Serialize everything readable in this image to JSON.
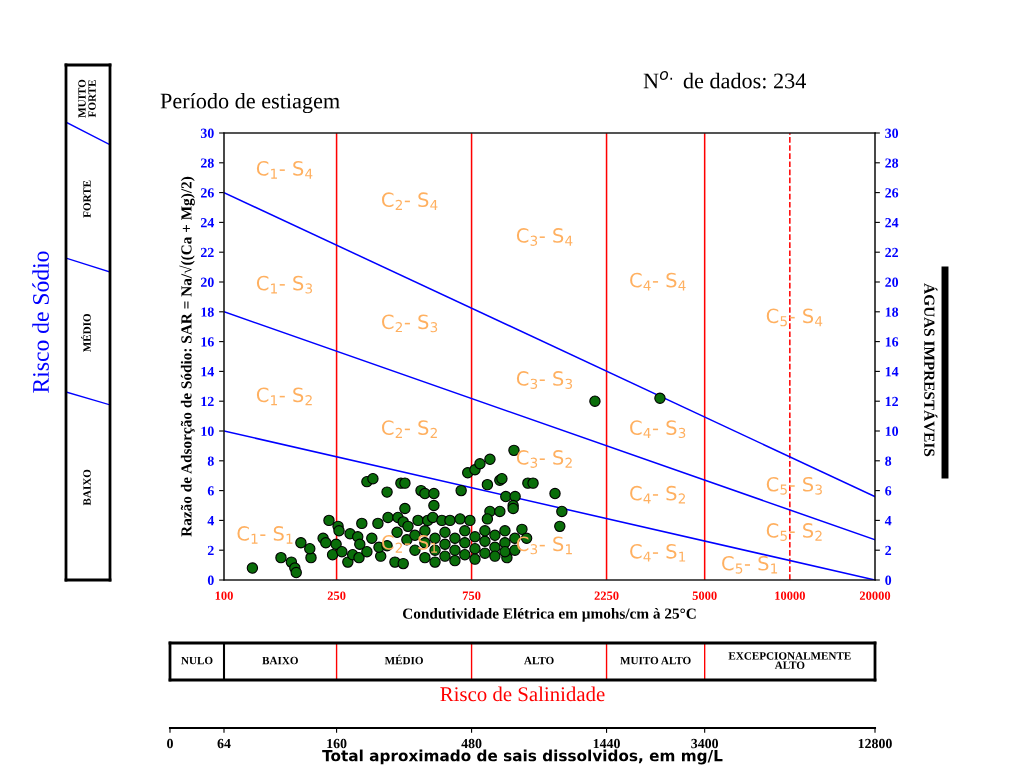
{
  "chart_data": {
    "type": "scatter",
    "title": "Período de estiagem",
    "xlabel": "Condutividade Elétrica em µmohs/cm à 25°C",
    "ylabel": "Razão de Adsorção de Sódio: SAR = Na/√((Ca + Mg)/2)",
    "log": "x",
    "grid": false,
    "marker": "circle",
    "xlim": [
      100,
      20000
    ],
    "xticks": [
      100,
      250,
      750,
      2250,
      5000,
      10000,
      20000
    ],
    "ylim": [
      0,
      30
    ],
    "yticks": [
      0,
      2,
      4,
      6,
      8,
      10,
      12,
      14,
      16,
      18,
      20,
      22,
      24,
      26,
      28,
      30
    ],
    "y2lim": [
      0,
      30
    ],
    "y2ticks": [
      0,
      2,
      4,
      6,
      8,
      10,
      12,
      14,
      16,
      18,
      20,
      22,
      24,
      26,
      28,
      30
    ],
    "series": [
      {
        "color": "#0a6e0a",
        "x": [
          126,
          159,
          173,
          178,
          180,
          203,
          201,
          187,
          224,
          229,
          235,
          253,
          255,
          249,
          242,
          261,
          279,
          274,
          297,
          302,
          285,
          307,
          300,
          320,
          333,
          350,
          320,
          336,
          377,
          358,
          353,
          377,
          380,
          412,
          409,
          402,
          422,
          436,
          436,
          430,
          430,
          447,
          443,
          497,
          513,
          552,
          552,
          485,
          525,
          547,
          589,
          629,
          683,
          740,
          689,
          727,
          771,
          803,
          871,
          1059,
          853,
          944,
          960,
          1186,
          1237,
          1479,
          991,
          1069,
          1052,
          1052,
          1564,
          1538,
          871,
          944,
          853,
          1130,
          1174,
          1000,
          473,
          473,
          513,
          513,
          513,
          557,
          557,
          557,
          604,
          604,
          604,
          655,
          655,
          655,
          710,
          710,
          710,
          771,
          771,
          771,
          836,
          836,
          836,
          907,
          907,
          907,
          984,
          984,
          984,
          1067,
          1067,
          2047,
          3475
        ],
        "values": [
          0.8,
          1.5,
          1.2,
          0.8,
          0.5,
          1.5,
          2.1,
          2.5,
          2.8,
          2.5,
          4.0,
          3.6,
          3.3,
          2.4,
          1.7,
          1.9,
          3.1,
          1.2,
          2.9,
          2.4,
          1.7,
          3.8,
          1.5,
          1.9,
          2.8,
          3.8,
          6.6,
          6.8,
          5.9,
          1.6,
          2.2,
          2.3,
          4.2,
          4.2,
          3.2,
          1.2,
          6.5,
          6.5,
          4.8,
          3.9,
          1.1,
          3.6,
          2.7,
          6.0,
          5.8,
          5.8,
          5.0,
          4.0,
          4.0,
          4.2,
          4.0,
          4.0,
          4.1,
          4.0,
          6.0,
          7.2,
          7.4,
          7.8,
          8.1,
          8.7,
          6.4,
          6.7,
          6.8,
          6.5,
          6.5,
          5.8,
          5.6,
          5.6,
          5.0,
          4.8,
          4.6,
          3.6,
          4.6,
          4.6,
          4.1,
          3.4,
          2.8,
          1.5,
          2.0,
          3.0,
          1.5,
          2.5,
          3.3,
          2.0,
          2.8,
          1.2,
          1.6,
          2.4,
          3.2,
          2.0,
          2.8,
          1.3,
          1.7,
          2.5,
          3.3,
          2.1,
          2.9,
          1.4,
          1.8,
          2.6,
          3.3,
          2.2,
          3.0,
          1.6,
          2.5,
          3.3,
          1.9,
          2.8,
          2.0,
          12.0,
          12.2
        ]
      },
      {
        "type": "line",
        "color": "#0000ff",
        "x": [
          100,
          20000
        ],
        "values": [
          10,
          0
        ],
        "marker": "none"
      },
      {
        "type": "line",
        "color": "#0000ff",
        "x": [
          100,
          20000
        ],
        "values": [
          18,
          2.7
        ],
        "marker": "none"
      },
      {
        "type": "line",
        "color": "#0000ff",
        "x": [
          100,
          20000
        ],
        "values": [
          26,
          5.6
        ],
        "marker": "none"
      }
    ],
    "ref_lines": [
      {
        "axis": "x",
        "value": 250,
        "color": "#ff0000",
        "line_style": "solid"
      },
      {
        "axis": "x",
        "value": 750,
        "color": "#ff0000",
        "line_style": "solid"
      },
      {
        "axis": "x",
        "value": 2250,
        "color": "#ff0000",
        "line_style": "solid"
      },
      {
        "axis": "x",
        "value": 5000,
        "color": "#ff0000",
        "line_style": "solid"
      },
      {
        "axis": "x",
        "value": 10000,
        "color": "#ff0000",
        "line_style": "dashed"
      }
    ],
    "annotations": [
      "N$^{o.}$ de dados: 234",
      "Risco de Sódio",
      "BAIXO",
      "MÉDIO",
      "FORTE",
      "MUITO\nFORTE",
      "ÁGUAS IMPRESTÁVEIS",
      "Risco de Salinidade",
      "NULO",
      "BAIXO",
      "MÉDIO",
      "ALTO",
      "MUITO ALTO",
      "EXCEPCIONALMENTE\nALTO",
      "0",
      "64",
      "160",
      "480",
      "1440",
      "3400",
      "12800",
      "Total aproximado de sais dissolvidos, em mg/L",
      "C$_{1}$- S$_{4}$",
      "C$_{1}$- S$_{3}$",
      "C$_{1}$- S$_{2}$",
      "C$_{1}$- S$_{1}$",
      "C$_{2}$- S$_{4}$",
      "C$_{2}$- S$_{3}$",
      "C$_{2}$- S$_{2}$",
      "C$_{2}$- S$_{1}$",
      "C$_{3}$- S$_{4}$",
      "C$_{3}$- S$_{3}$",
      "C$_{3}$- S$_{2}$",
      "C$_{3}$- S$_{1}$",
      "C$_{4}$- S$_{4}$",
      "C$_{4}$- S$_{3}$",
      "C$_{4}$- S$_{2}$",
      "C$_{4}$- S$_{1}$",
      "C$_{5}$- S$_{4}$",
      "C$_{5}$- S$_{3}$",
      "C$_{5}$- S$_{2}$",
      "C$_{5}$- S$_{1}$"
    ]
  }
}
